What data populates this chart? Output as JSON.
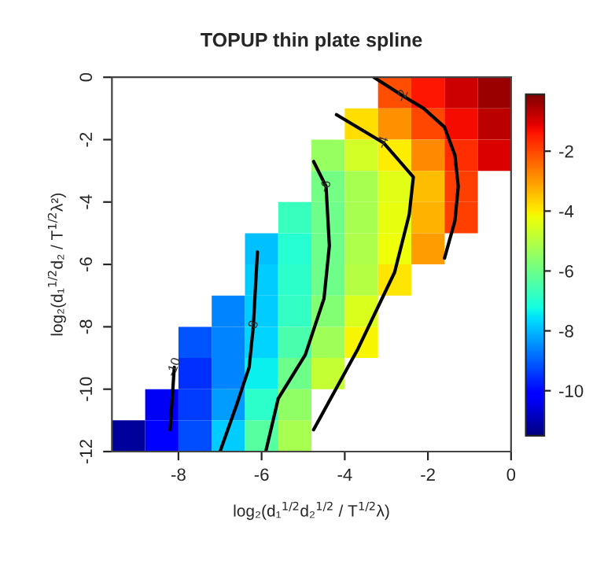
{
  "chart_data": {
    "type": "heatmap",
    "title": "TOPUP thin plate spline",
    "xlabel": "log₂(d₁$^{1/2}$d₂$^{1/2}$ / T$^{1/2}$λ)",
    "ylabel": "log₂(d₁$^{1/2}$d₂ / T$^{1/2}$λ²)",
    "x": [
      -9.2,
      -8.4,
      -7.6,
      -6.8,
      -6.0,
      -5.2,
      -4.4,
      -3.6,
      -2.8,
      -2.0,
      -1.2,
      -0.4
    ],
    "y": [
      -0.5,
      -1.5,
      -2.5,
      -3.5,
      -4.5,
      -5.5,
      -6.5,
      -7.5,
      -8.5,
      -9.5,
      -10.5,
      -11.5
    ],
    "cells": [
      [
        null,
        null,
        null,
        null,
        null,
        null,
        null,
        null,
        -2.1,
        -1.4,
        -0.9,
        -0.4
      ],
      [
        null,
        null,
        null,
        null,
        null,
        null,
        null,
        -3.8,
        -2.9,
        -2.0,
        -1.3,
        -0.7
      ],
      [
        null,
        null,
        null,
        null,
        null,
        null,
        -5.4,
        -4.6,
        -4.0,
        -2.8,
        -1.7,
        -1.0
      ],
      [
        null,
        null,
        null,
        null,
        null,
        null,
        -5.9,
        -5.2,
        -4.4,
        -3.4,
        -1.9,
        null
      ],
      [
        null,
        null,
        null,
        null,
        null,
        -6.7,
        -6.0,
        -5.2,
        -4.3,
        -3.3,
        -1.9,
        null
      ],
      [
        null,
        null,
        null,
        null,
        -7.9,
        -7.0,
        -6.0,
        -5.1,
        -4.2,
        -3.0,
        null,
        null
      ],
      [
        null,
        null,
        null,
        null,
        -7.8,
        -6.9,
        -6.0,
        -5.0,
        -3.9,
        null,
        null,
        null
      ],
      [
        null,
        null,
        null,
        -8.6,
        -7.8,
        -6.8,
        -5.7,
        -4.5,
        null,
        null,
        null,
        null
      ],
      [
        null,
        null,
        -9.1,
        -8.6,
        -7.7,
        -6.5,
        -5.3,
        -4.1,
        null,
        null,
        null,
        null
      ],
      [
        null,
        null,
        -9.5,
        -8.6,
        -7.4,
        -6.0,
        -4.8,
        null,
        null,
        null,
        null,
        null
      ],
      [
        null,
        -10.3,
        -9.4,
        -8.3,
        -6.9,
        -5.5,
        null,
        null,
        null,
        null,
        null,
        null
      ],
      [
        -11.2,
        -10.2,
        -9.2,
        -7.8,
        -6.3,
        -5.2,
        null,
        null,
        null,
        null,
        null,
        null
      ]
    ],
    "clim": [
      -11.5,
      -0.1
    ],
    "cticks": [
      -2,
      -4,
      -6,
      -8,
      -10
    ],
    "xlim": [
      -9.6,
      0
    ],
    "ylim": [
      -12,
      0
    ],
    "xticks": [
      -8,
      -6,
      -4,
      -2,
      0
    ],
    "yticks": [
      0,
      -2,
      -4,
      -6,
      -8,
      -10,
      -12
    ],
    "series": [
      {
        "type": "line",
        "name": "-2",
        "color": "#000000",
        "x": [
          -3.3,
          -2.6,
          -2.1,
          -1.6,
          -1.35,
          -1.27,
          -1.35,
          -1.6
        ],
        "values": [
          0,
          -0.6,
          -1.0,
          -1.6,
          -2.5,
          -3.5,
          -4.6,
          -5.8
        ]
      },
      {
        "type": "line",
        "name": "-4",
        "color": "#000000",
        "x": [
          -4.2,
          -3.07,
          -2.35,
          -2.45,
          -2.8,
          -3.68,
          -4.75
        ],
        "values": [
          -1.2,
          -2.1,
          -3.2,
          -4.4,
          -6.25,
          -8.7,
          -11.3
        ]
      },
      {
        "type": "line",
        "name": "-6",
        "color": "#000000",
        "x": [
          -4.75,
          -4.45,
          -4.37,
          -4.5,
          -4.95,
          -5.6,
          -5.9
        ],
        "values": [
          -2.7,
          -3.5,
          -5.4,
          -7.1,
          -8.9,
          -10.3,
          -12
        ]
      },
      {
        "type": "line",
        "name": "-8",
        "color": "#000000",
        "x": [
          -6.1,
          -6.2,
          -6.3,
          -6.6,
          -7.0
        ],
        "values": [
          -5.6,
          -8,
          -9.3,
          -10.5,
          -12
        ]
      },
      {
        "type": "line",
        "name": "-10",
        "color": "#000000",
        "x": [
          -8.1,
          -8.2
        ],
        "values": [
          -9.3,
          -11.3
        ]
      }
    ],
    "grid": false
  }
}
